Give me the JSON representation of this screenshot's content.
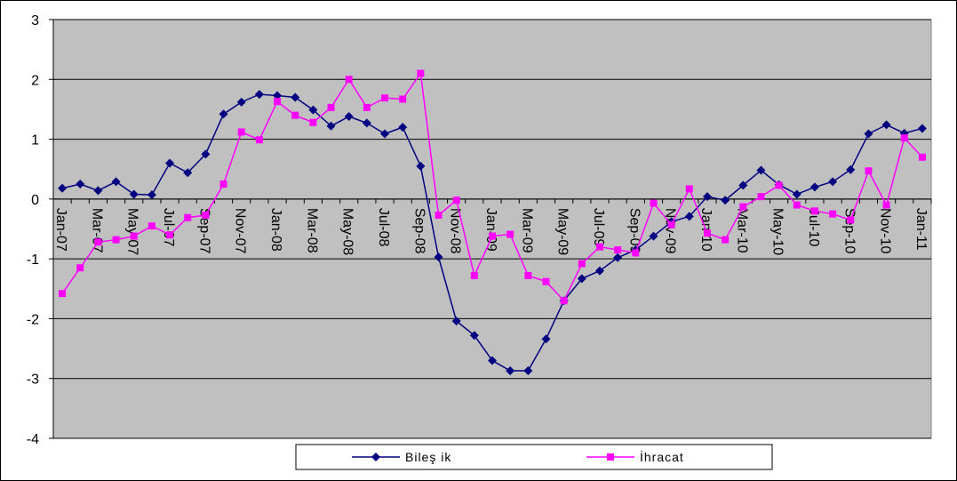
{
  "chart_data": {
    "type": "line",
    "title": "",
    "xlabel": "",
    "ylabel": "",
    "ylim": [
      -4,
      3
    ],
    "yticks": [
      3,
      2,
      1,
      0,
      -1,
      -2,
      -3,
      -4
    ],
    "grid": "horizontal",
    "legend_position": "bottom",
    "plot_background": "#c0c0c0",
    "x": [
      "Jan-07",
      "Feb-07",
      "Mar-07",
      "Apr-07",
      "May-07",
      "Jun-07",
      "Jul-07",
      "Aug-07",
      "Sep-07",
      "Oct-07",
      "Nov-07",
      "Dec-07",
      "Jan-08",
      "Feb-08",
      "Mar-08",
      "Apr-08",
      "May-08",
      "Jun-08",
      "Jul-08",
      "Aug-08",
      "Sep-08",
      "Oct-08",
      "Nov-08",
      "Dec-08",
      "Jan-09",
      "Feb-09",
      "Mar-09",
      "Apr-09",
      "May-09",
      "Jun-09",
      "Jul-09",
      "Aug-09",
      "Sep-09",
      "Oct-09",
      "Nov-09",
      "Dec-09",
      "Jan-10",
      "Feb-10",
      "Mar-10",
      "Apr-10",
      "May-10",
      "Jun-10",
      "Jul-10",
      "Aug-10",
      "Sep-10",
      "Oct-10",
      "Nov-10",
      "Dec-10",
      "Jan-11"
    ],
    "x_tick_labels": [
      "Jan-07",
      "Mar-07",
      "May-07",
      "Jul-07",
      "Sep-07",
      "Nov-07",
      "Jan-08",
      "Mar-08",
      "May-08",
      "Jul-08",
      "Sep-08",
      "Nov-08",
      "Jan-09",
      "Mar-09",
      "May-09",
      "Jul-09",
      "Sep-09",
      "Nov-09",
      "Jan-10",
      "Mar-10",
      "May-10",
      "Jul-10",
      "Sep-10",
      "Nov-10",
      "Jan-11"
    ],
    "series": [
      {
        "name": "Bileş ik",
        "color": "#000080",
        "marker": "diamond",
        "values": [
          0.18,
          0.25,
          0.14,
          0.29,
          0.08,
          0.07,
          0.6,
          0.44,
          0.75,
          1.42,
          1.62,
          1.75,
          1.73,
          1.7,
          1.49,
          1.22,
          1.38,
          1.27,
          1.09,
          1.2,
          0.55,
          -0.97,
          -2.04,
          -2.28,
          -2.7,
          -2.87,
          -2.87,
          -2.34,
          -1.7,
          -1.33,
          -1.2,
          -0.98,
          -0.85,
          -0.62,
          -0.38,
          -0.29,
          0.04,
          -0.02,
          0.23,
          0.48,
          0.24,
          0.08,
          0.2,
          0.29,
          0.49,
          1.09,
          1.24,
          1.1,
          1.18
        ]
      },
      {
        "name": "İhracat",
        "color": "#ff00ff",
        "marker": "square",
        "values": [
          -1.58,
          -1.15,
          -0.72,
          -0.68,
          -0.62,
          -0.45,
          -0.6,
          -0.31,
          -0.27,
          0.25,
          1.12,
          0.99,
          1.63,
          1.4,
          1.28,
          1.53,
          2.0,
          1.53,
          1.69,
          1.67,
          2.1,
          -0.27,
          -0.02,
          -1.28,
          -0.62,
          -0.59,
          -1.28,
          -1.38,
          -1.7,
          -1.08,
          -0.8,
          -0.85,
          -0.9,
          -0.07,
          -0.43,
          0.17,
          -0.57,
          -0.68,
          -0.13,
          0.04,
          0.23,
          -0.1,
          -0.2,
          -0.25,
          -0.35,
          0.47,
          -0.1,
          1.02,
          0.7
        ]
      }
    ]
  }
}
